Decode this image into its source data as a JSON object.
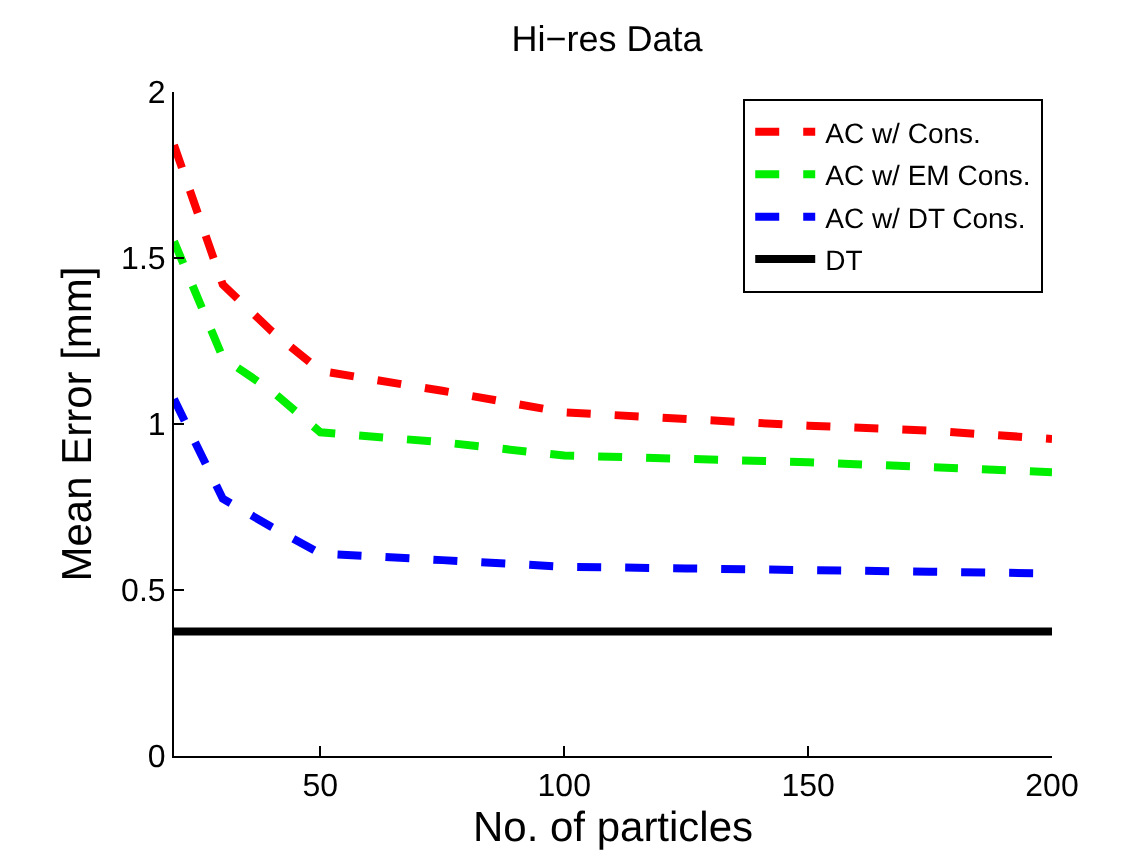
{
  "chart_data": {
    "type": "line",
    "title": "Hi−res Data",
    "xlabel": "No. of particles",
    "ylabel": "Mean Error [mm]",
    "x": [
      20,
      30,
      40,
      50,
      75,
      100,
      125,
      150,
      175,
      200
    ],
    "xlim": [
      20,
      200
    ],
    "xticks": [
      50,
      100,
      150,
      200
    ],
    "ylim": [
      0,
      2
    ],
    "yticks": [
      0,
      0.5,
      1,
      1.5,
      2
    ],
    "grid": false,
    "legend": "top right",
    "marker": "none",
    "series": [
      {
        "name": "AC w/ Cons.",
        "color": "#ff0000",
        "line_style": "dashed",
        "values": [
          1.84,
          1.42,
          1.28,
          1.16,
          1.1,
          1.035,
          1.015,
          0.995,
          0.98,
          0.955
        ]
      },
      {
        "name": "AC w/ EM Cons.",
        "color": "#00ee00",
        "line_style": "dashed",
        "values": [
          1.55,
          1.2,
          1.1,
          0.975,
          0.945,
          0.905,
          0.895,
          0.885,
          0.87,
          0.855
        ]
      },
      {
        "name": "AC w/ DT Cons.",
        "color": "#0000ff",
        "line_style": "dashed",
        "values": [
          1.075,
          0.775,
          0.69,
          0.61,
          0.59,
          0.57,
          0.565,
          0.56,
          0.555,
          0.55
        ]
      },
      {
        "name": "DT",
        "color": "#000000",
        "line_style": "solid",
        "values": [
          0.375,
          0.375,
          0.375,
          0.375,
          0.375,
          0.375,
          0.375,
          0.375,
          0.375,
          0.375
        ]
      }
    ]
  }
}
